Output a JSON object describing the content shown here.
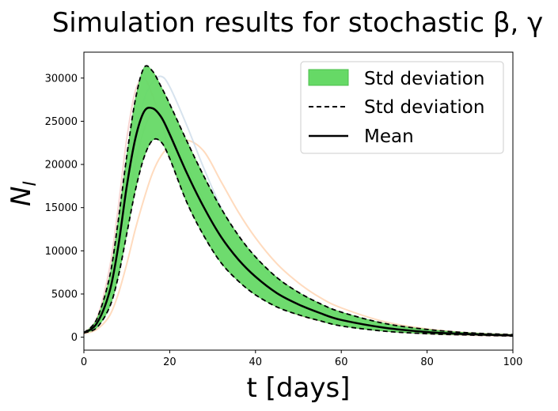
{
  "chart_data": {
    "type": "line",
    "title": "Simulation results for stochastic β, γ",
    "xlabel": "t [days]",
    "ylabel": "N_I",
    "xlim": [
      0,
      100
    ],
    "ylim": [
      -1500,
      33000
    ],
    "x_ticks": [
      "0",
      "20",
      "40",
      "60",
      "80",
      "100"
    ],
    "y_ticks": [
      "0",
      "5000",
      "10000",
      "15000",
      "20000",
      "25000",
      "30000"
    ],
    "grid": false,
    "legend_position": "top-right",
    "legend": [
      "Std deviation",
      "Std deviation",
      "Mean"
    ],
    "x": [
      0,
      3,
      6,
      8,
      10,
      12,
      14,
      16,
      18,
      20,
      24,
      28,
      32,
      36,
      40,
      45,
      50,
      55,
      60,
      70,
      80,
      90,
      100
    ],
    "series": [
      {
        "name": "Mean",
        "values": [
          500,
          1600,
          5300,
          10500,
          17500,
          23000,
          26100,
          26500,
          25500,
          23500,
          19000,
          15000,
          11600,
          9000,
          7000,
          5100,
          3800,
          2800,
          2000,
          1100,
          600,
          350,
          200
        ]
      },
      {
        "name": "Std deviation",
        "values": [
          500,
          2100,
          7000,
          13500,
          21000,
          27500,
          31200,
          30800,
          29000,
          27000,
          22700,
          18600,
          14900,
          11800,
          9300,
          6900,
          5200,
          3900,
          2900,
          1600,
          900,
          500,
          300
        ]
      },
      {
        "name": "Std deviation",
        "values": [
          500,
          1100,
          3500,
          7000,
          12000,
          17000,
          20800,
          22800,
          22600,
          20700,
          15600,
          11700,
          8600,
          6500,
          4900,
          3500,
          2600,
          1900,
          1300,
          700,
          400,
          250,
          130
        ]
      }
    ],
    "simulation_runs": [
      {
        "color": "#ffcfa8",
        "values": [
          400,
          900,
          2500,
          5000,
          8500,
          12500,
          16000,
          19000,
          21000,
          22000,
          22800,
          21500,
          18000,
          14500,
          11500,
          8500,
          6300,
          4600,
          3400,
          1800,
          950,
          500,
          280
        ]
      },
      {
        "color": "#f4c7c3",
        "values": [
          500,
          2200,
          8000,
          15000,
          23000,
          28500,
          30000,
          28000,
          25000,
          21500,
          16000,
          11800,
          8800,
          6600,
          5000,
          3600,
          2600,
          1900,
          1400,
          750,
          400,
          220,
          120
        ]
      },
      {
        "color": "#c9d9e8",
        "values": [
          500,
          1500,
          5000,
          10000,
          17000,
          23000,
          27500,
          29500,
          30200,
          29000,
          24500,
          19500,
          15000,
          11500,
          8800,
          6400,
          4700,
          3500,
          2600,
          1400,
          750,
          420,
          230
        ]
      },
      {
        "color": "#cfe3cf",
        "values": [
          500,
          1300,
          4200,
          8500,
          14500,
          20000,
          24000,
          26000,
          25800,
          24000,
          19800,
          15700,
          12200,
          9400,
          7200,
          5200,
          3800,
          2800,
          2000,
          1100,
          600,
          330,
          180
        ]
      }
    ],
    "colors": {
      "band_fill": "#66d966",
      "band_edge": "#4cbf4c",
      "mean_line": "#000000",
      "std_line": "#000000"
    }
  }
}
